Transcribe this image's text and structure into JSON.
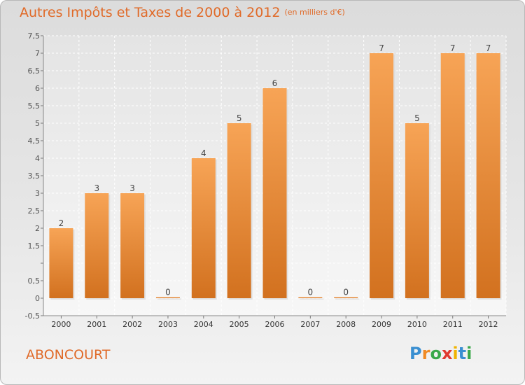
{
  "header": {
    "title": "Autres Impôts et Taxes de 2000 à 2012",
    "unit": "(en milliers d'€)"
  },
  "commune": "ABONCOURT",
  "logo": {
    "letters": [
      "P",
      "r",
      "o",
      "x",
      "i",
      "t",
      "i"
    ],
    "colors": [
      "#3a8fd1",
      "#f08a24",
      "#3aa84a",
      "#e03a2f",
      "#f0b400",
      "#3a8fd1",
      "#3aa84a"
    ]
  },
  "colors": {
    "accent": "#e06a28",
    "bar_top": "#f7a456",
    "bar_bottom": "#d2711f"
  },
  "chart_data": {
    "type": "bar",
    "title": "Autres Impôts et Taxes de 2000 à 2012",
    "subtitle": "(en milliers d'€)",
    "xlabel": "",
    "ylabel": "",
    "categories": [
      "2000",
      "2001",
      "2002",
      "2003",
      "2004",
      "2005",
      "2006",
      "2007",
      "2008",
      "2009",
      "2010",
      "2011",
      "2012"
    ],
    "values": [
      2,
      3,
      3,
      0,
      4,
      5,
      6,
      0,
      0,
      7,
      5,
      7,
      7
    ],
    "data_labels": [
      "2",
      "3",
      "3",
      "0",
      "4",
      "5",
      "6",
      "0",
      "0",
      "7",
      "5",
      "7",
      "7"
    ],
    "ylim": [
      -0.5,
      7.5
    ],
    "yticks": [
      -0.5,
      0,
      0.5,
      1,
      1.5,
      2,
      2.5,
      3,
      3.5,
      4,
      4.5,
      5,
      5.5,
      6,
      6.5,
      7,
      7.5
    ],
    "ytick_labels": [
      "-0,5",
      "0",
      "0,5",
      "",
      "1,5",
      "2",
      "2,5",
      "3",
      "3,5",
      "4",
      "4,5",
      "5",
      "5,5",
      "6",
      "6,5",
      "7",
      "7,5"
    ],
    "grid": true,
    "legend": "none"
  }
}
